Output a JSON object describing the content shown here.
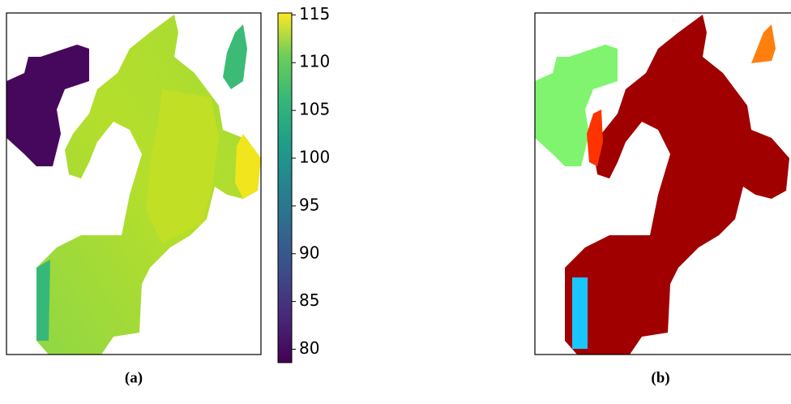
{
  "chart_data": [
    {
      "type": "heatmap",
      "caption": "(a)",
      "colorbar": {
        "lim": [
          78.6,
          115.2
        ],
        "ticks": [
          80,
          85,
          90,
          95,
          100,
          105,
          110,
          115
        ]
      }
    },
    {
      "type": "segmentation",
      "caption": "(b)"
    }
  ]
}
